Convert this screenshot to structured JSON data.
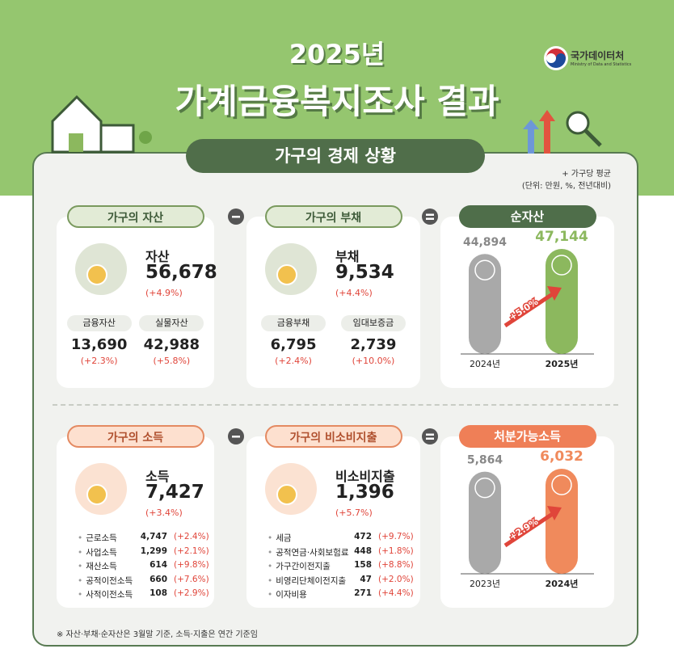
{
  "header": {
    "year": "2025년",
    "title": "가계금융복지조사 결과",
    "org": "국가데이터처",
    "org_en": "Ministry of Data and Statistics"
  },
  "section_title": "가구의 경제 상황",
  "notes": [
    "+ 가구당 평균",
    "(단위: 만원, %, 전년대비)"
  ],
  "rows": [
    {
      "cards": [
        {
          "tab": "가구의 자산",
          "name": "자산",
          "value": "56,678",
          "change": "(+4.9%)",
          "items": [
            {
              "label": "금융자산",
              "value": "13,690",
              "change": "(+2.3%)"
            },
            {
              "label": "실물자산",
              "value": "42,988",
              "change": "(+5.8%)"
            }
          ]
        },
        {
          "tab": "가구의 부채",
          "name": "부채",
          "value": "9,534",
          "change": "(+4.4%)",
          "items": [
            {
              "label": "금융부채",
              "value": "6,795",
              "change": "(+2.4%)"
            },
            {
              "label": "임대보증금",
              "value": "2,739",
              "change": "(+10.0%)"
            }
          ]
        }
      ],
      "result": {
        "tab": "순자산",
        "bars": [
          {
            "label": "2024년",
            "value": 44894,
            "value_label": "44,894",
            "color": "#a9a9a9"
          },
          {
            "label": "2025년",
            "value": 47144,
            "value_label": "47,144",
            "color": "#8cb85e"
          }
        ],
        "growth": "+5.0%"
      }
    },
    {
      "cards": [
        {
          "tab": "가구의 소득",
          "name": "소득",
          "value": "7,427",
          "change": "(+3.4%)",
          "items": [
            {
              "label": "근로소득",
              "value": "4,747",
              "change": "(+2.4%)"
            },
            {
              "label": "사업소득",
              "value": "1,299",
              "change": "(+2.1%)"
            },
            {
              "label": "재산소득",
              "value": "614",
              "change": "(+9.8%)"
            },
            {
              "label": "공적이전소득",
              "value": "660",
              "change": "(+7.6%)"
            },
            {
              "label": "사적이전소득",
              "value": "108",
              "change": "(+2.9%)"
            }
          ]
        },
        {
          "tab": "가구의 비소비지출",
          "name": "비소비지출",
          "value": "1,396",
          "change": "(+5.7%)",
          "items": [
            {
              "label": "세금",
              "value": "472",
              "change": "(+9.7%)"
            },
            {
              "label": "공적연금·사회보험료",
              "value": "448",
              "change": "(+1.8%)"
            },
            {
              "label": "가구간이전지출",
              "value": "158",
              "change": "(+8.8%)"
            },
            {
              "label": "비영리단체이전지출",
              "value": "47",
              "change": "(+2.0%)"
            },
            {
              "label": "이자비용",
              "value": "271",
              "change": "(+4.4%)"
            }
          ]
        }
      ],
      "result": {
        "tab": "처분가능소득",
        "bars": [
          {
            "label": "2023년",
            "value": 5864,
            "value_label": "5,864",
            "color": "#a9a9a9"
          },
          {
            "label": "2024년",
            "value": 6032,
            "value_label": "6,032",
            "color": "#f08a5c"
          }
        ],
        "growth": "+2.9%"
      }
    }
  ],
  "footnote": "※ 자산·부채·순자산은 3월말 기준, 소득·지출은 연간 기준임"
}
